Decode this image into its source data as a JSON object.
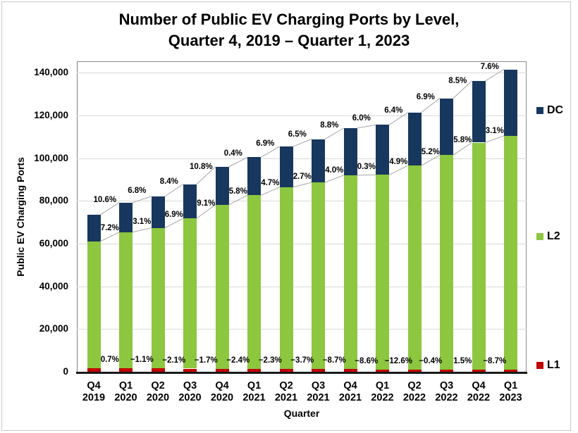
{
  "title": {
    "line1": "Number of Public EV Charging Ports by Level,",
    "line2": "Quarter 4, 2019 – Quarter 1, 2023"
  },
  "y_axis": {
    "title": "Public EV Charging Ports"
  },
  "x_axis": {
    "title": "Quarter"
  },
  "colors": {
    "dc": "#17375e",
    "l2": "#8dc63f",
    "l1": "#c00000",
    "gridline": "#d9d9d9",
    "connector": "#a6a6a6"
  },
  "chart_data": {
    "type": "bar",
    "stacked": true,
    "title": "Number of Public EV Charging Ports by Level, Quarter 4, 2019 – Quarter 1, 2023",
    "xlabel": "Quarter",
    "ylabel": "Public EV Charging Ports",
    "ylim": [
      0,
      145000
    ],
    "grid": true,
    "legend_position": "right",
    "yticks": [
      0,
      20000,
      40000,
      60000,
      80000,
      100000,
      120000,
      140000
    ],
    "ytick_labels": [
      "0",
      "20,000",
      "40,000",
      "60,000",
      "80,000",
      "100,000",
      "120,000",
      "140,000"
    ],
    "categories": [
      "Q4 2019",
      "Q1 2020",
      "Q2 2020",
      "Q3 2020",
      "Q4 2020",
      "Q1 2021",
      "Q2 2021",
      "Q3 2021",
      "Q4 2021",
      "Q1 2022",
      "Q2 2022",
      "Q3 2022",
      "Q4 2022",
      "Q1 2023"
    ],
    "series": [
      {
        "name": "L1",
        "color": "#c00000",
        "values": [
          1520,
          1531,
          1514,
          1482,
          1457,
          1422,
          1389,
          1338,
          1221,
          1116,
          975,
          971,
          986,
          900
        ],
        "qoq_change_labels": [
          "0.7%",
          "−1.1%",
          "−2.1%",
          "−1.7%",
          "−2.4%",
          "−2.3%",
          "−3.7%",
          "−8.7%",
          "−8.6%",
          "−12.6%",
          "−0.4%",
          "1.5%",
          "−8.7%"
        ]
      },
      {
        "name": "L2",
        "color": "#8dc63f",
        "values": [
          59500,
          63784,
          65761,
          70299,
          76696,
          81144,
          84958,
          87252,
          90742,
          91014,
          95474,
          100439,
          106264,
          109558
        ],
        "qoq_change_labels": [
          "7.2%",
          "3.1%",
          "6.9%",
          "9.1%",
          "5.8%",
          "4.7%",
          "2.7%",
          "4.0%",
          "0.3%",
          "4.9%",
          "5.2%",
          "5.8%",
          "3.1%"
        ]
      },
      {
        "name": "DC",
        "color": "#17375e",
        "values": [
          12500,
          13825,
          14765,
          16005,
          17734,
          17805,
          19034,
          20271,
          22055,
          23378,
          24874,
          26590,
          28850,
          31043
        ],
        "qoq_change_labels": [
          "10.6%",
          "6.8%",
          "8.4%",
          "10.8%",
          "0.4%",
          "6.9%",
          "6.5%",
          "8.8%",
          "6.0%",
          "6.4%",
          "6.9%",
          "8.5%",
          "7.6%"
        ]
      }
    ],
    "legend": [
      {
        "label": "DC",
        "color": "#17375e"
      },
      {
        "label": "L2",
        "color": "#8dc63f"
      },
      {
        "label": "L1",
        "color": "#c00000"
      }
    ]
  }
}
